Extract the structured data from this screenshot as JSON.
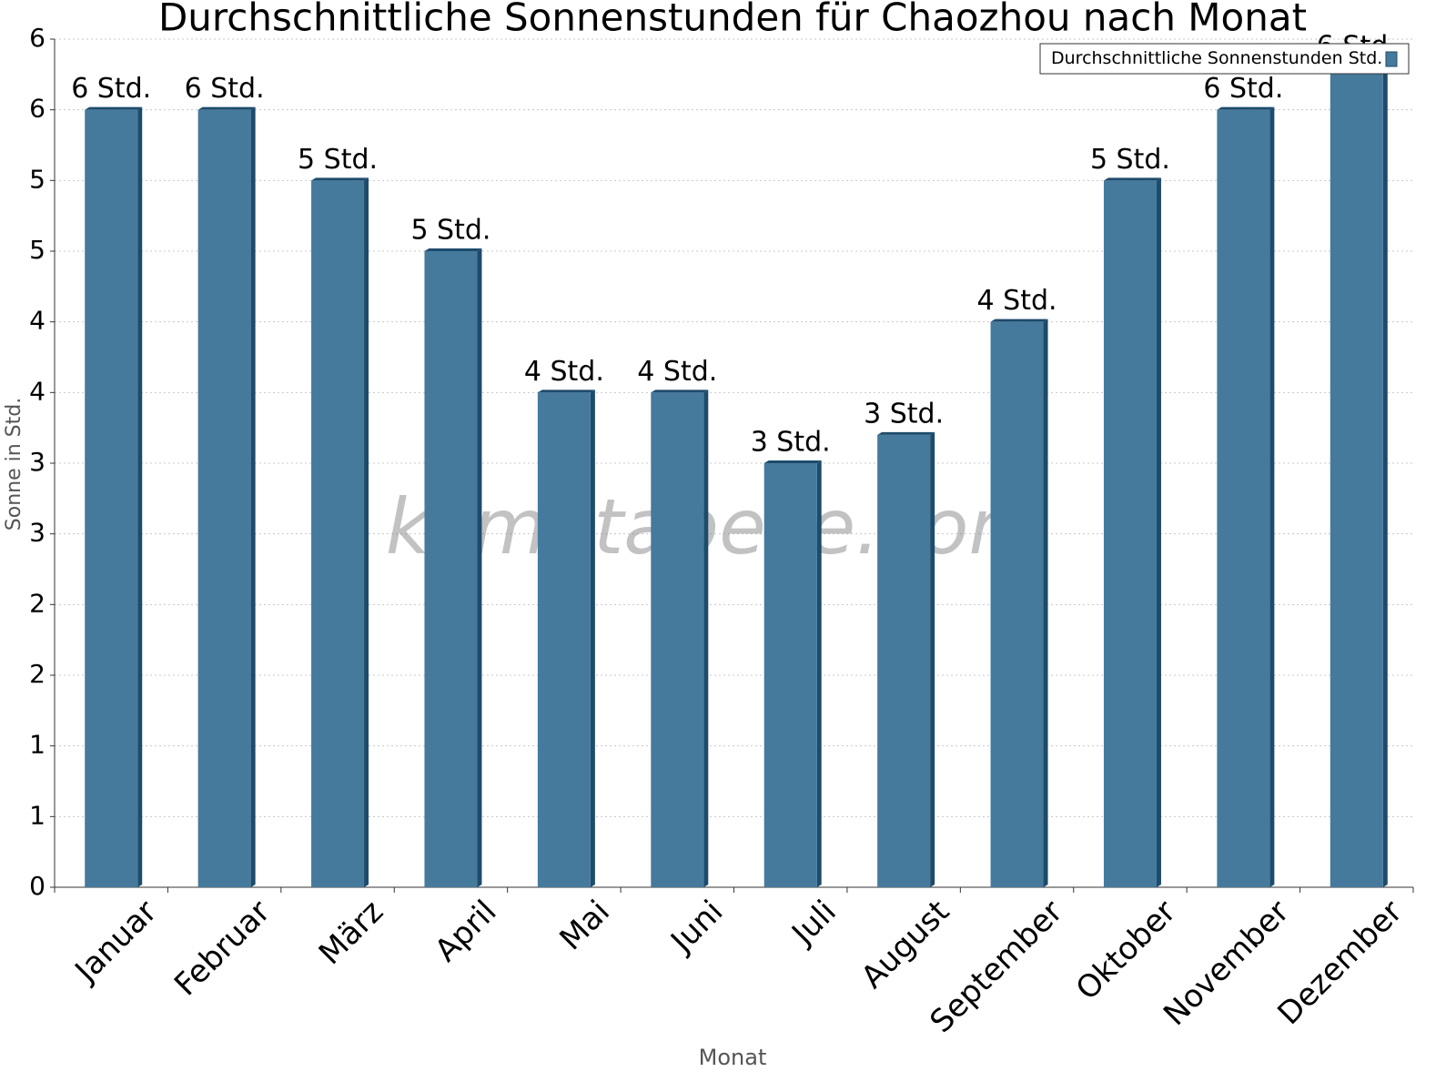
{
  "chart_data": {
    "type": "bar",
    "title": "Durchschnittliche Sonnenstunden für Chaozhou nach Monat",
    "x_label": "Monat",
    "y_label": "Sonne in Std.",
    "watermark": "klimatabelle.com",
    "categories": [
      "Januar",
      "Februar",
      "März",
      "April",
      "Mai",
      "Juni",
      "Juli",
      "August",
      "September",
      "Oktober",
      "November",
      "Dezember"
    ],
    "series": [
      {
        "name": "Durchschnittliche Sonnenstunden Std.",
        "color": "#467a9c",
        "values": [
          5.5,
          5.5,
          5.0,
          4.5,
          3.5,
          3.5,
          3.0,
          3.2,
          4.0,
          5.0,
          5.5,
          5.8
        ],
        "value_labels": [
          "6 Std.",
          "6 Std.",
          "5 Std.",
          "5 Std.",
          "4 Std.",
          "4 Std.",
          "3 Std.",
          "3 Std.",
          "4 Std.",
          "5 Std.",
          "6 Std.",
          "6 Std."
        ]
      }
    ],
    "ylim": [
      0,
      6
    ],
    "yticks": [
      0,
      {
        "value": 0.5,
        "label": "1"
      },
      1,
      {
        "value": 1.5,
        "label": "2"
      },
      2,
      {
        "value": 2.5,
        "label": "3"
      },
      3,
      {
        "value": 3.5,
        "label": "4"
      },
      4,
      {
        "value": 4.5,
        "label": "5"
      },
      5,
      {
        "value": 5.5,
        "label": "6"
      },
      6
    ],
    "grid": true,
    "legend": "top-right"
  }
}
